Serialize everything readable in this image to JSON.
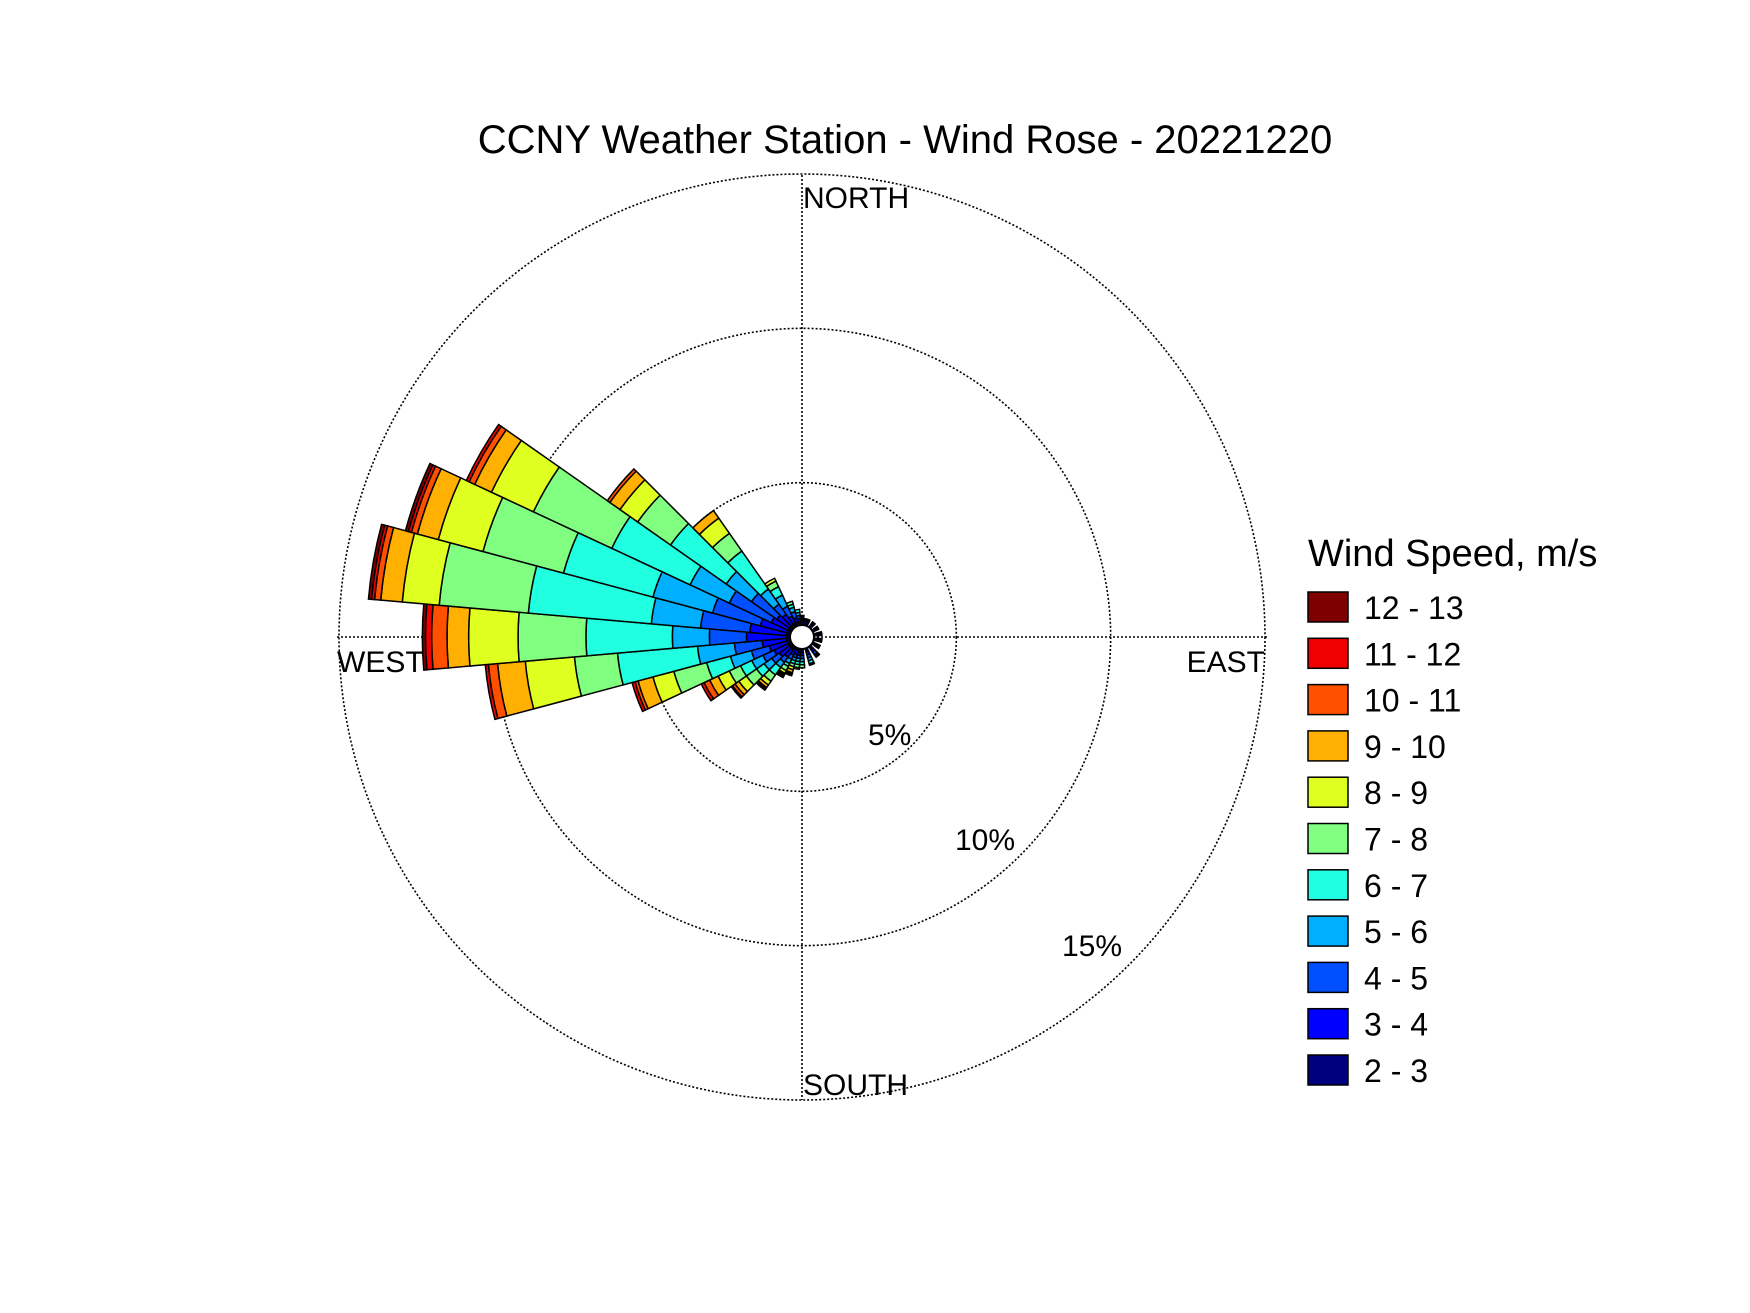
{
  "chart_data": {
    "type": "wind-rose",
    "title": "CCNY Weather Station - Wind Rose - 20221220",
    "direction_labels": {
      "north": "NORTH",
      "east": "EAST",
      "south": "SOUTH",
      "west": "WEST"
    },
    "radial_unit": "%",
    "rmax": 15,
    "rings": [
      {
        "value": 5,
        "label": "5%"
      },
      {
        "value": 10,
        "label": "10%"
      },
      {
        "value": 15,
        "label": "15%"
      }
    ],
    "legend": {
      "title": "Wind Speed, m/s",
      "placement": "right"
    },
    "speed_bins": [
      {
        "label": "2 - 3",
        "color": "#00007f"
      },
      {
        "label": "3 - 4",
        "color": "#0000ff"
      },
      {
        "label": "4 - 5",
        "color": "#0050ff"
      },
      {
        "label": "5 - 6",
        "color": "#00b0ff"
      },
      {
        "label": "6 - 7",
        "color": "#20ffdf"
      },
      {
        "label": "7 - 8",
        "color": "#80ff80"
      },
      {
        "label": "8 - 9",
        "color": "#dfff20"
      },
      {
        "label": "9 - 10",
        "color": "#ffb000"
      },
      {
        "label": "10 - 11",
        "color": "#ff5000"
      },
      {
        "label": "11 - 12",
        "color": "#f00000"
      },
      {
        "label": "12 - 13",
        "color": "#7f0000"
      }
    ],
    "sector_width_deg": 10,
    "sectors": [
      {
        "direction_deg": 200,
        "cum_percent": [
          0.45,
          0.6,
          0.7,
          0.8,
          0.9,
          1.0,
          1.1,
          1.2,
          1.25,
          1.3,
          1.3
        ]
      },
      {
        "direction_deg": 210,
        "cum_percent": [
          0.45,
          0.65,
          0.8,
          0.95,
          1.05,
          1.2,
          1.3,
          1.35,
          1.4,
          1.45,
          1.45
        ]
      },
      {
        "direction_deg": 220,
        "cum_percent": [
          0.5,
          0.8,
          1.0,
          1.2,
          1.5,
          1.75,
          1.9,
          2.0,
          2.05,
          2.1,
          2.1
        ]
      },
      {
        "direction_deg": 230,
        "cum_percent": [
          0.5,
          0.9,
          1.2,
          1.5,
          1.8,
          2.2,
          2.5,
          2.65,
          2.75,
          2.8,
          2.8
        ]
      },
      {
        "direction_deg": 240,
        "cum_percent": [
          0.5,
          1.0,
          1.4,
          1.8,
          2.2,
          2.6,
          3.0,
          3.3,
          3.5,
          3.6,
          3.6
        ]
      },
      {
        "direction_deg": 250,
        "cum_percent": [
          0.5,
          1.1,
          1.7,
          2.4,
          3.2,
          4.3,
          5.0,
          5.5,
          5.6,
          5.7,
          5.7
        ]
      },
      {
        "direction_deg": 260,
        "cum_percent": [
          0.5,
          1.3,
          2.2,
          3.4,
          6.0,
          7.4,
          9.0,
          9.9,
          10.2,
          10.3,
          10.3
        ]
      },
      {
        "direction_deg": 270,
        "cum_percent": [
          0.5,
          1.8,
          3.0,
          4.2,
          7.0,
          9.2,
          10.8,
          11.5,
          12.0,
          12.2,
          12.3
        ]
      },
      {
        "direction_deg": 280,
        "cum_percent": [
          0.5,
          1.7,
          3.3,
          4.9,
          8.9,
          11.8,
          13.0,
          13.7,
          13.9,
          14.0,
          14.1
        ]
      },
      {
        "direction_deg": 290,
        "cum_percent": [
          0.5,
          1.4,
          3.0,
          5.0,
          8.0,
          10.7,
          12.2,
          12.9,
          13.1,
          13.2,
          13.3
        ]
      },
      {
        "direction_deg": 300,
        "cum_percent": [
          0.5,
          1.1,
          2.6,
          4.0,
          6.8,
          9.6,
          11.1,
          11.7,
          11.9,
          12.0,
          12.0
        ]
      },
      {
        "direction_deg": 310,
        "cum_percent": [
          0.5,
          1.0,
          2.0,
          3.0,
          5.2,
          6.5,
          7.2,
          7.6,
          7.7,
          7.7,
          7.7
        ]
      },
      {
        "direction_deg": 320,
        "cum_percent": [
          0.5,
          0.9,
          1.3,
          1.9,
          3.4,
          4.1,
          4.7,
          5.0,
          5.0,
          5.0,
          5.0
        ]
      },
      {
        "direction_deg": 330,
        "cum_percent": [
          0.5,
          0.75,
          1.1,
          1.5,
          1.8,
          2.0,
          2.1,
          2.1,
          2.1,
          2.1,
          2.1
        ]
      },
      {
        "direction_deg": 340,
        "cum_percent": [
          0.5,
          0.65,
          0.85,
          1.0,
          1.1,
          1.2,
          1.2,
          1.2,
          1.2,
          1.2,
          1.2
        ]
      },
      {
        "direction_deg": 350,
        "cum_percent": [
          0.5,
          0.6,
          0.7,
          0.8,
          0.9,
          0.9,
          0.9,
          0.9,
          0.9,
          0.9,
          0.9
        ]
      },
      {
        "direction_deg": 0,
        "cum_percent": [
          0.5,
          0.55,
          0.6,
          0.65,
          0.7,
          0.7,
          0.7,
          0.7,
          0.7,
          0.7,
          0.7
        ]
      },
      {
        "direction_deg": 10,
        "cum_percent": [
          0.5,
          0.55,
          0.6,
          0.6,
          0.6,
          0.6,
          0.6,
          0.6,
          0.6,
          0.6,
          0.6
        ]
      },
      {
        "direction_deg": 20,
        "cum_percent": [
          0.5,
          0.55,
          0.6,
          0.6,
          0.6,
          0.6,
          0.6,
          0.6,
          0.6,
          0.6,
          0.6
        ]
      },
      {
        "direction_deg": 40,
        "cum_percent": [
          0.5,
          0.55,
          0.6,
          0.6,
          0.6,
          0.6,
          0.6,
          0.6,
          0.6,
          0.6,
          0.6
        ]
      },
      {
        "direction_deg": 60,
        "cum_percent": [
          0.5,
          0.55,
          0.6,
          0.6,
          0.6,
          0.6,
          0.6,
          0.6,
          0.6,
          0.6,
          0.6
        ]
      },
      {
        "direction_deg": 80,
        "cum_percent": [
          0.5,
          0.55,
          0.6,
          0.65,
          0.65,
          0.65,
          0.65,
          0.65,
          0.65,
          0.65,
          0.65
        ]
      },
      {
        "direction_deg": 100,
        "cum_percent": [
          0.5,
          0.55,
          0.6,
          0.65,
          0.65,
          0.65,
          0.65,
          0.65,
          0.65,
          0.65,
          0.65
        ]
      },
      {
        "direction_deg": 120,
        "cum_percent": [
          0.5,
          0.55,
          0.6,
          0.65,
          0.65,
          0.65,
          0.65,
          0.65,
          0.65,
          0.65,
          0.65
        ]
      },
      {
        "direction_deg": 140,
        "cum_percent": [
          0.5,
          0.6,
          0.7,
          0.75,
          0.8,
          0.8,
          0.8,
          0.8,
          0.8,
          0.8,
          0.8
        ]
      },
      {
        "direction_deg": 160,
        "cum_percent": [
          0.5,
          0.6,
          0.7,
          0.8,
          0.9,
          0.95,
          0.95,
          0.95,
          0.95,
          0.95,
          0.95
        ]
      },
      {
        "direction_deg": 180,
        "cum_percent": [
          0.5,
          0.6,
          0.7,
          0.8,
          0.9,
          1.0,
          1.0,
          1.0,
          1.0,
          1.0,
          1.0
        ]
      },
      {
        "direction_deg": 190,
        "cum_percent": [
          0.5,
          0.6,
          0.7,
          0.8,
          0.9,
          1.0,
          1.05,
          1.05,
          1.05,
          1.05,
          1.05
        ]
      }
    ]
  }
}
